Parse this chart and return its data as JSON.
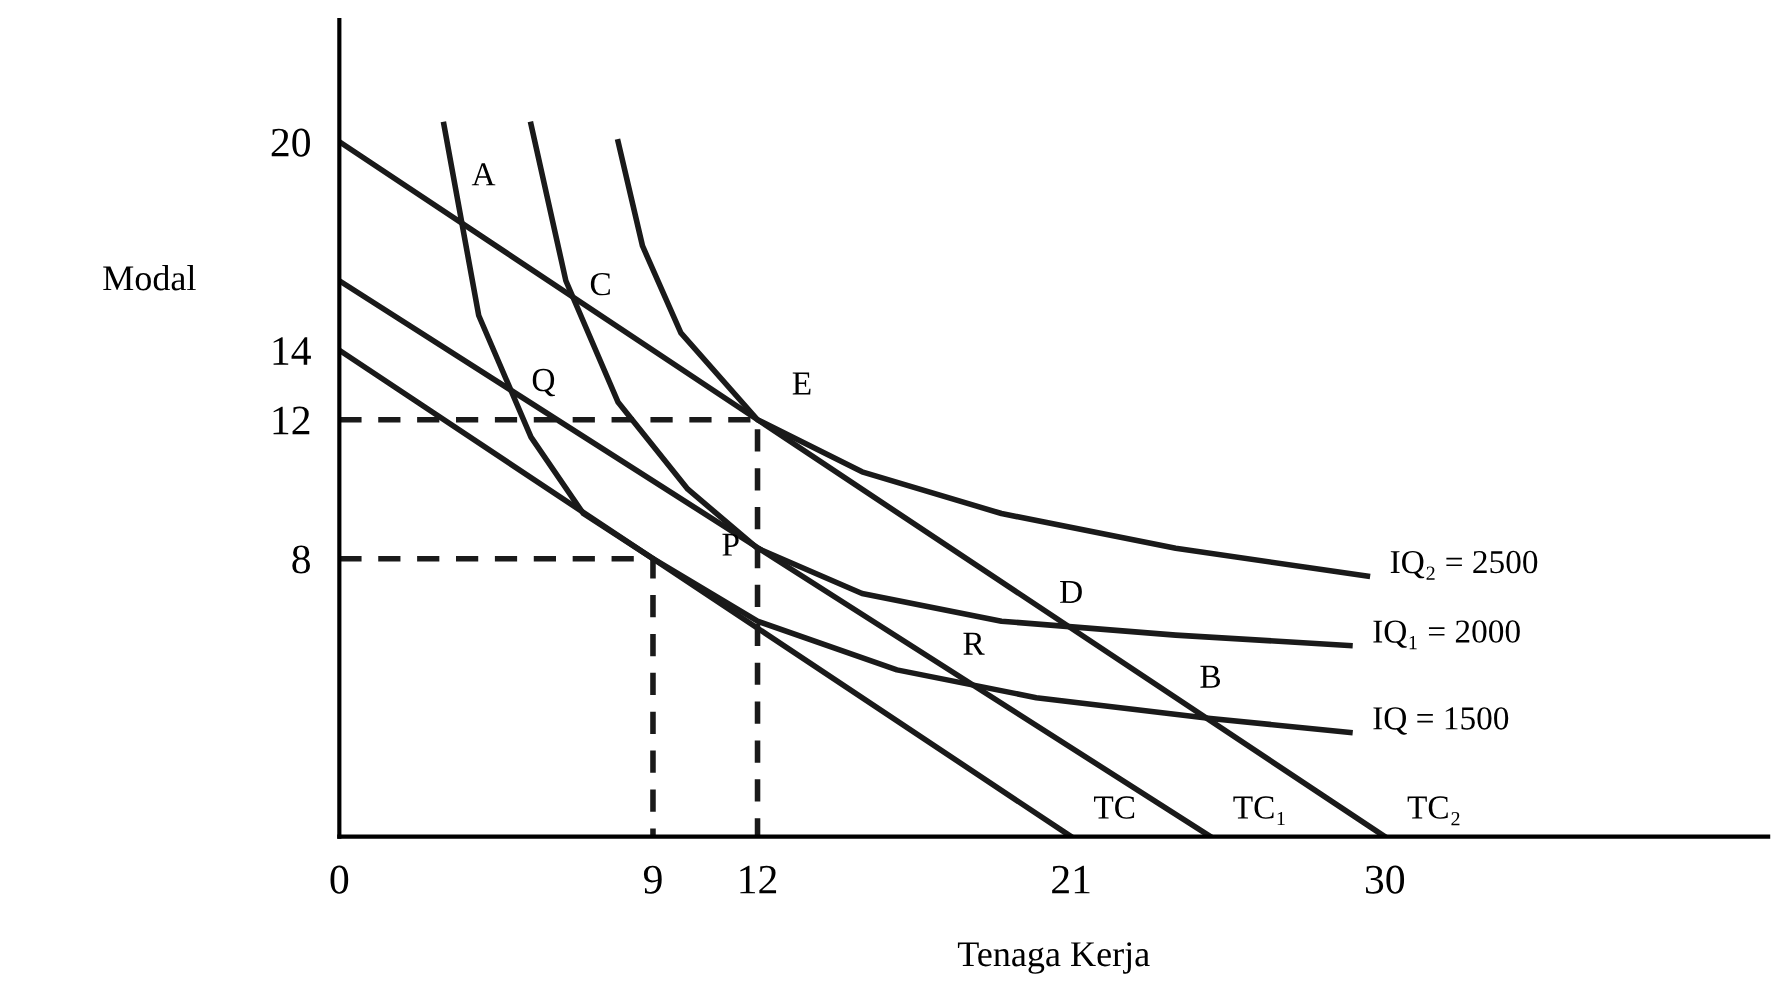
{
  "chart_data": {
    "type": "line",
    "xlabel": "Tenaga Kerja",
    "ylabel": "Modal",
    "xlim": [
      0,
      41
    ],
    "ylim": [
      0,
      23.5
    ],
    "xticks": [
      0,
      9,
      12,
      21,
      30
    ],
    "yticks": [
      8,
      12,
      14,
      20
    ],
    "grid": false,
    "legend": false,
    "marker": "none",
    "series": [
      {
        "name": "TC",
        "color": "#1a1a1a",
        "x": [
          0,
          21
        ],
        "values": [
          14,
          0
        ]
      },
      {
        "name": "TC₁",
        "color": "#1a1a1a",
        "x": [
          0,
          25
        ],
        "values": [
          16,
          0
        ]
      },
      {
        "name": "TC₂",
        "color": "#1a1a1a",
        "x": [
          0,
          30
        ],
        "values": [
          20,
          0
        ]
      },
      {
        "name": "IQ = 1500",
        "color": "#1a1a1a",
        "x": [
          3,
          4,
          5.5,
          7,
          9,
          12,
          16,
          20,
          25,
          29
        ],
        "values": [
          20.5,
          15,
          11.5,
          9.3,
          8,
          6.2,
          4.8,
          4,
          3.4,
          3
        ]
      },
      {
        "name": "IQ₁ = 2000",
        "color": "#1a1a1a",
        "x": [
          5.5,
          6.5,
          8,
          10,
          12,
          15,
          19,
          24,
          29
        ],
        "values": [
          20.5,
          16,
          12.5,
          10,
          8.3,
          7,
          6.2,
          5.8,
          5.5
        ]
      },
      {
        "name": "IQ₂ = 2500",
        "color": "#1a1a1a",
        "x": [
          8,
          8.7,
          9.8,
          12,
          15,
          19,
          24,
          29.5
        ],
        "values": [
          20,
          17,
          14.5,
          12,
          10.5,
          9.3,
          8.3,
          7.5
        ]
      },
      {
        "color": "#1a1a1a",
        "line_style": "dashed",
        "x": [
          0,
          9,
          9
        ],
        "values": [
          8,
          8,
          0
        ]
      },
      {
        "color": "#1a1a1a",
        "line_style": "dashed",
        "x": [
          0,
          12,
          12
        ],
        "values": [
          12,
          12,
          0
        ]
      }
    ],
    "annotations": [
      {
        "text": "A",
        "x": 3.5,
        "y": 17.7
      },
      {
        "text": "C",
        "x": 6.7,
        "y": 15.5
      },
      {
        "text": "Q",
        "x": 4.9,
        "y": 12.9
      },
      {
        "text": "E",
        "x": 12,
        "y": 12
      },
      {
        "text": "P",
        "x": 9,
        "y": 8
      },
      {
        "text": "R",
        "x": 18.2,
        "y": 4.35
      },
      {
        "text": "D",
        "x": 21,
        "y": 6
      },
      {
        "text": "B",
        "x": 25,
        "y": 3.4
      }
    ]
  }
}
